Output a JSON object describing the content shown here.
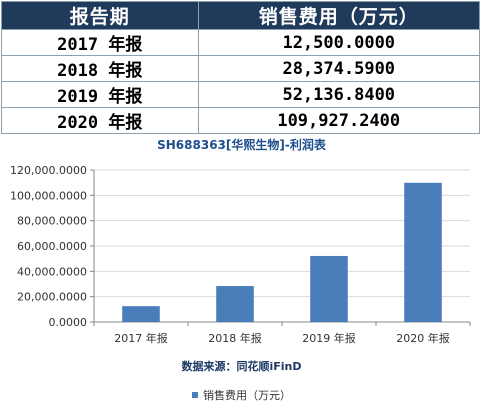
{
  "table": {
    "headers": [
      "报告期",
      "销售费用（万元）"
    ],
    "rows": [
      [
        "2017 年报",
        "12,500.0000"
      ],
      [
        "2018 年报",
        "28,374.5900"
      ],
      [
        "2019 年报",
        "52,136.8400"
      ],
      [
        "2020 年报",
        "109,927.2400"
      ]
    ]
  },
  "chart_data": {
    "type": "bar",
    "title": "SH688363[华熙生物]-利润表",
    "categories": [
      "2017 年报",
      "2018 年报",
      "2019 年报",
      "2020 年报"
    ],
    "series": [
      {
        "name": "销售费用（万元）",
        "values": [
          12500.0,
          28374.59,
          52136.84,
          109927.24
        ]
      }
    ],
    "y_ticks": [
      "0.0000",
      "20,000.0000",
      "40,000.0000",
      "60,000.0000",
      "80,000.0000",
      "100,000.0000",
      "120,000.0000"
    ],
    "ylim": [
      0,
      120000
    ],
    "xlabel": "",
    "ylabel": "",
    "grid": true,
    "bar_color": "#4a7ebb",
    "legend_position": "bottom"
  },
  "source_note": "数据来源：同花顺iFinD"
}
